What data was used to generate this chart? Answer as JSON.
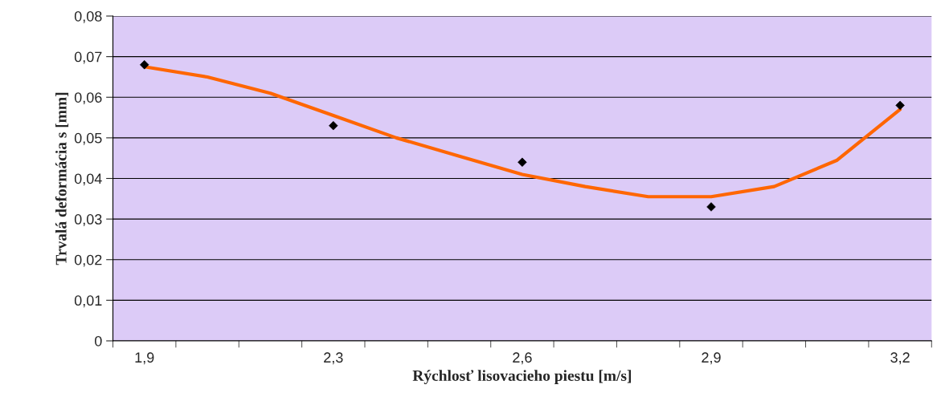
{
  "chart_data": {
    "type": "scatter",
    "xlabel": "Rýchlosť lisovacieho piestu [m/s]",
    "ylabel": "Trvalá deformácia s [mm]",
    "categories": [
      "1,9",
      null,
      null,
      "2,3",
      null,
      null,
      "2,6",
      null,
      null,
      "2,9",
      null,
      null,
      "3,2"
    ],
    "series": [
      {
        "color": "#000000",
        "marker": "diamond",
        "values": [
          0.068,
          null,
          null,
          0.053,
          null,
          null,
          0.044,
          null,
          null,
          0.033,
          null,
          null,
          0.058
        ]
      },
      {
        "type": "line",
        "color": "#ff6600",
        "marker": "none",
        "values": [
          0.0675,
          0.065,
          0.061,
          0.0555,
          0.05,
          0.0455,
          0.041,
          0.038,
          0.0355,
          0.0355,
          0.038,
          0.0445,
          0.057
        ]
      }
    ],
    "ylim": [
      0,
      0.08
    ],
    "yticks": [
      {
        "value": 0,
        "label": "0"
      },
      {
        "value": 0.01,
        "label": "0,01"
      },
      {
        "value": 0.02,
        "label": "0,02"
      },
      {
        "value": 0.03,
        "label": "0,03"
      },
      {
        "value": 0.04,
        "label": "0,04"
      },
      {
        "value": 0.05,
        "label": "0,05"
      },
      {
        "value": 0.06,
        "label": "0,06"
      },
      {
        "value": 0.07,
        "label": "0,07"
      },
      {
        "value": 0.08,
        "label": "0,08"
      }
    ],
    "grid": "y",
    "legend": false
  }
}
